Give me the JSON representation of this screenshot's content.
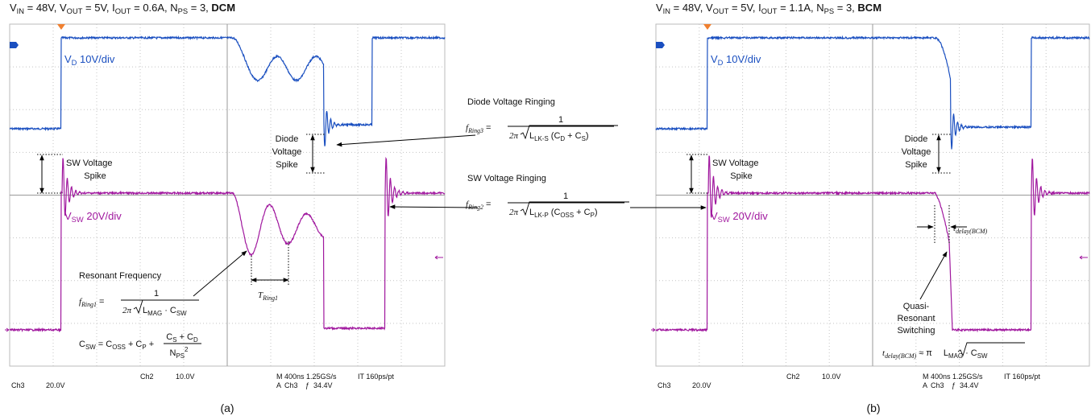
{
  "panels": [
    {
      "title": [
        "V",
        "IN",
        " = 48V, V",
        "OUT",
        " = 5V, I",
        "OUT",
        " = 0.6A, N",
        "PS",
        " = 3, ",
        "DCM"
      ],
      "vd_label": [
        "V",
        "D",
        " 10V/div"
      ],
      "vsw_label": [
        "V",
        "SW",
        " 20V/div"
      ],
      "sw_spike": [
        "SW Voltage",
        "Spike"
      ],
      "diode_spike": [
        "Diode",
        "Voltage",
        "Spike"
      ],
      "status": [
        "Ch3",
        "20.0V",
        "Ch2",
        "10.0V",
        "M 400ns 1.25GS/s",
        "IT 160ps/pt",
        "A",
        "Ch3",
        "ƒ",
        "34.4V"
      ],
      "caption": "(a)"
    },
    {
      "title": [
        "V",
        "IN",
        " = 48V, V",
        "OUT",
        " = 5V, I",
        "OUT",
        " = 1.1A, N",
        "PS",
        " = 3, ",
        "BCM"
      ],
      "vd_label": [
        "V",
        "D",
        " 10V/div"
      ],
      "vsw_label": [
        "V",
        "SW",
        " 20V/div"
      ],
      "sw_spike": [
        "SW Voltage",
        "Spike"
      ],
      "diode_spike": [
        "Diode",
        "Voltage",
        "Spike"
      ],
      "status": [
        "Ch3",
        "20.0V",
        "Ch2",
        "10.0V",
        "M 400ns 1.25GS/s",
        "IT 160ps/pt",
        "A",
        "Ch3",
        "ƒ",
        "34.4V"
      ],
      "caption": "(b)"
    }
  ],
  "resonant": {
    "heading": "Resonant Frequency",
    "lhs": [
      "f",
      "Ring1",
      " ="
    ],
    "num": "1",
    "den": [
      "2π",
      "L",
      "MAG",
      " · C",
      "SW"
    ],
    "c_sw": [
      "C",
      "SW",
      " = C",
      "OSS",
      " + C",
      "P",
      " + "
    ],
    "c_sw_num": [
      "C",
      "S",
      " + C",
      "D"
    ],
    "c_sw_den": [
      "N",
      "PS",
      "2"
    ],
    "t_ring1": [
      "T",
      "Ring1"
    ]
  },
  "diode_ringing": {
    "heading": "Diode Voltage Ringing",
    "lhs": [
      "f",
      "Ring3",
      " ="
    ],
    "num": "1",
    "den": [
      "2π",
      "L",
      "LK-S",
      " (C",
      "D",
      " + C",
      "S",
      ")"
    ]
  },
  "sw_ringing": {
    "heading": "SW Voltage Ringing",
    "lhs": [
      "f",
      "Ring2",
      " ="
    ],
    "num": "1",
    "den": [
      "2π",
      "L",
      "LK-P",
      " (C",
      "OSS",
      " + C",
      "P",
      ")"
    ]
  },
  "bcm": {
    "t_delay": [
      "t",
      "delay(BCM)"
    ],
    "qrs": [
      "Quasi-",
      "Resonant",
      "Switching"
    ],
    "formula": [
      "t",
      "delay(BCM)",
      " ≈ π",
      "L",
      "MAG",
      " · C",
      "SW"
    ]
  }
}
